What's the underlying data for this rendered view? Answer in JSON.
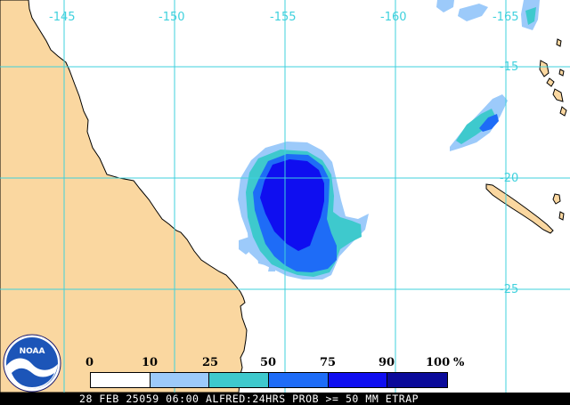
{
  "colors": {
    "land": "#fad7a0",
    "coast": "#000000",
    "grid": "#3fd1dd",
    "grid_labels": "#3fd1dd",
    "ocean": "#ffffff"
  },
  "map": {
    "longitude_labels": [
      "-145",
      "-150",
      "-155",
      "-160",
      "-165"
    ],
    "latitude_labels": [
      "-15",
      "-20",
      "-25"
    ]
  },
  "legend": {
    "tick_labels": [
      "0",
      "10",
      "25",
      "50",
      "75",
      "90",
      "100"
    ],
    "unit": "%",
    "bins": [
      {
        "from": 0,
        "to": 10,
        "color": "#ffffff"
      },
      {
        "from": 10,
        "to": 25,
        "color": "#9ccafa"
      },
      {
        "from": 25,
        "to": 50,
        "color": "#3ec9cd"
      },
      {
        "from": 50,
        "to": 75,
        "color": "#1e6cf7"
      },
      {
        "from": 75,
        "to": 90,
        "color": "#0f0ef0"
      },
      {
        "from": 90,
        "to": 100,
        "color": "#0a0a9a"
      }
    ]
  },
  "footer": {
    "caption": "28 FEB 25059 06:00 ALFRED:24HRS PROB >= 50 MM ETRAP"
  },
  "logo": {
    "text": "NOAA",
    "icon": "noaa-logo-icon"
  }
}
